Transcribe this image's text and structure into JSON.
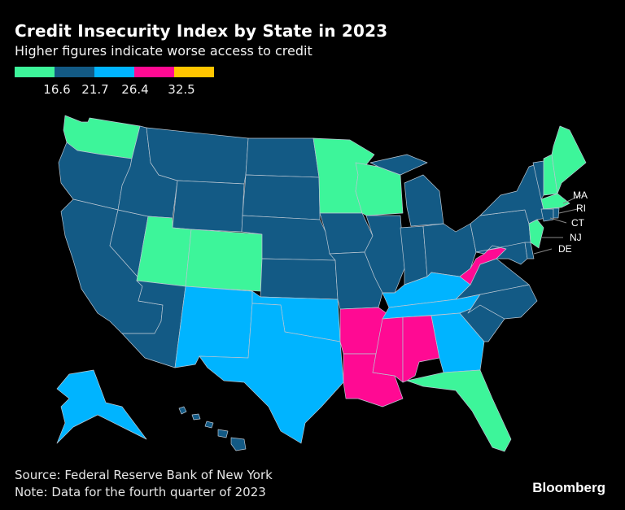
{
  "title": "Credit Insecurity Index by State in 2023",
  "subtitle": "Higher figures indicate worse access to credit",
  "legend": {
    "colors": [
      "#3df59a",
      "#135a85",
      "#00b4ff",
      "#ff0a93",
      "#ffc500"
    ],
    "ticks": [
      "16.6",
      "21.7",
      "26.4",
      "32.5"
    ]
  },
  "colors": {
    "c1": "#3df59a",
    "c2": "#135a85",
    "c3": "#00b4ff",
    "c4": "#ff0a93",
    "c5": "#ffc500",
    "border": "#b9c6d2"
  },
  "states": [
    {
      "id": "WA",
      "cat": "c1"
    },
    {
      "id": "OR",
      "cat": "c2"
    },
    {
      "id": "CA",
      "cat": "c2"
    },
    {
      "id": "NV",
      "cat": "c2"
    },
    {
      "id": "ID",
      "cat": "c2"
    },
    {
      "id": "MT",
      "cat": "c2"
    },
    {
      "id": "WY",
      "cat": "c2"
    },
    {
      "id": "UT",
      "cat": "c1"
    },
    {
      "id": "CO",
      "cat": "c1"
    },
    {
      "id": "AZ",
      "cat": "c2"
    },
    {
      "id": "NM",
      "cat": "c3"
    },
    {
      "id": "ND",
      "cat": "c2"
    },
    {
      "id": "SD",
      "cat": "c2"
    },
    {
      "id": "NE",
      "cat": "c2"
    },
    {
      "id": "KS",
      "cat": "c2"
    },
    {
      "id": "OK",
      "cat": "c3"
    },
    {
      "id": "TX",
      "cat": "c3"
    },
    {
      "id": "MN",
      "cat": "c1"
    },
    {
      "id": "IA",
      "cat": "c2"
    },
    {
      "id": "MO",
      "cat": "c2"
    },
    {
      "id": "AR",
      "cat": "c4"
    },
    {
      "id": "LA",
      "cat": "c4"
    },
    {
      "id": "WI",
      "cat": "c1"
    },
    {
      "id": "IL",
      "cat": "c2"
    },
    {
      "id": "MI",
      "cat": "c2"
    },
    {
      "id": "IN",
      "cat": "c2"
    },
    {
      "id": "OH",
      "cat": "c2"
    },
    {
      "id": "KY",
      "cat": "c3"
    },
    {
      "id": "TN",
      "cat": "c3"
    },
    {
      "id": "MS",
      "cat": "c4"
    },
    {
      "id": "AL",
      "cat": "c4"
    },
    {
      "id": "GA",
      "cat": "c3"
    },
    {
      "id": "FL",
      "cat": "c1"
    },
    {
      "id": "SC",
      "cat": "c2"
    },
    {
      "id": "NC",
      "cat": "c2"
    },
    {
      "id": "VA",
      "cat": "c2"
    },
    {
      "id": "WV",
      "cat": "c4"
    },
    {
      "id": "PA",
      "cat": "c2"
    },
    {
      "id": "NY",
      "cat": "c2"
    },
    {
      "id": "NJ",
      "cat": "c1"
    },
    {
      "id": "MD",
      "cat": "c2"
    },
    {
      "id": "DE",
      "cat": "c2"
    },
    {
      "id": "VT",
      "cat": "c2"
    },
    {
      "id": "NH",
      "cat": "c1"
    },
    {
      "id": "ME",
      "cat": "c1"
    },
    {
      "id": "MA",
      "cat": "c1"
    },
    {
      "id": "CT",
      "cat": "c2"
    },
    {
      "id": "RI",
      "cat": "c2"
    },
    {
      "id": "AK",
      "cat": "c3"
    },
    {
      "id": "HI",
      "cat": "c2"
    }
  ],
  "callouts": [
    "MA",
    "RI",
    "CT",
    "NJ",
    "DE"
  ],
  "footer": {
    "source": "Source: Federal Reserve Bank of New York",
    "note": "Note: Data for the fourth quarter of 2023"
  },
  "brand": "Bloomberg"
}
